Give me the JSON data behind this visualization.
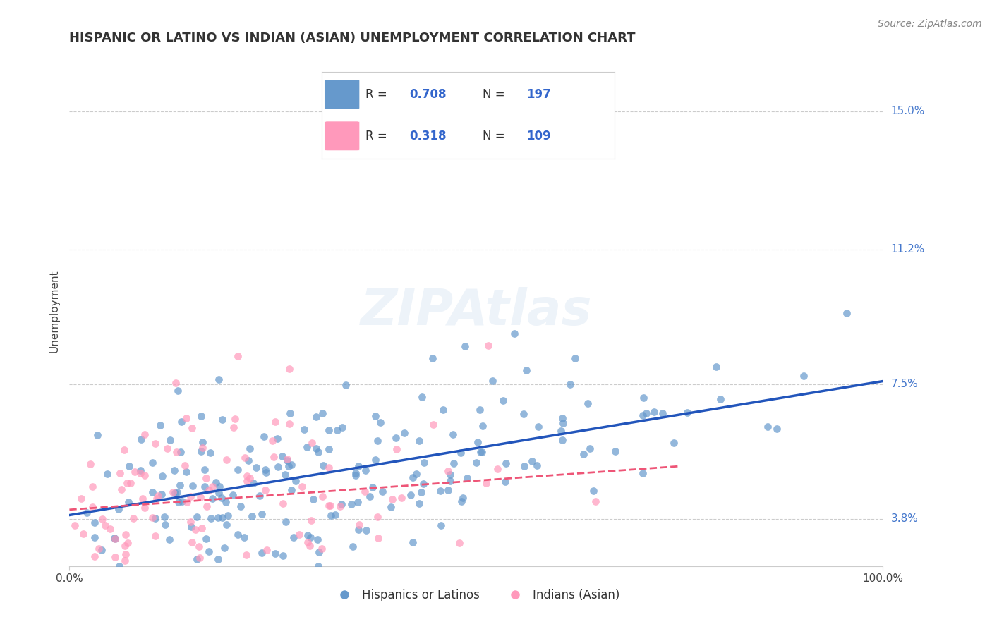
{
  "title": "HISPANIC OR LATINO VS INDIAN (ASIAN) UNEMPLOYMENT CORRELATION CHART",
  "source": "Source: ZipAtlas.com",
  "ylabel": "Unemployment",
  "xlim": [
    0,
    100
  ],
  "ylim": [
    2.5,
    16.5
  ],
  "yticks": [
    3.8,
    7.5,
    11.2,
    15.0
  ],
  "ytick_labels": [
    "3.8%",
    "7.5%",
    "11.2%",
    "15.0%"
  ],
  "xtick_labels": [
    "0.0%",
    "100.0%"
  ],
  "blue_color": "#6699CC",
  "pink_color": "#FF99BB",
  "blue_line_color": "#2255BB",
  "pink_line_color": "#EE5577",
  "grid_color": "#CCCCCC",
  "legend_r1_val": "0.708",
  "legend_n1_val": "197",
  "legend_r2_val": "0.318",
  "legend_n2_val": "109",
  "blue_R": 0.708,
  "pink_R": 0.318,
  "blue_N": 197,
  "pink_N": 109,
  "blue_intercept": 3.8,
  "blue_slope": 0.037,
  "pink_intercept": 4.2,
  "pink_slope": 0.018,
  "background_color": "#FFFFFF",
  "title_fontsize": 13,
  "label_fontsize": 11,
  "tick_fontsize": 11,
  "legend_fontsize": 13,
  "source_fontsize": 10
}
